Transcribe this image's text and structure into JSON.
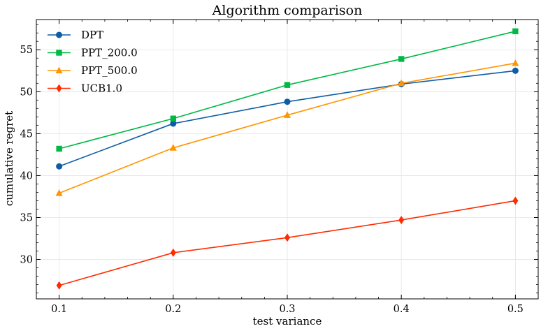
{
  "chart_data": {
    "type": "line",
    "title": "Algorithm comparison",
    "xlabel": "test variance",
    "ylabel": "cumulative regret",
    "x": [
      0.1,
      0.2,
      0.3,
      0.4,
      0.5
    ],
    "x_tick_labels": [
      "0.1",
      "0.2",
      "0.3",
      "0.4",
      "0.5"
    ],
    "xlim": [
      0.08,
      0.52
    ],
    "ylim": [
      25.3,
      58.6
    ],
    "y_ticks": [
      30,
      35,
      40,
      45,
      50,
      55
    ],
    "y_tick_labels": [
      "30",
      "35",
      "40",
      "45",
      "50",
      "55"
    ],
    "grid": true,
    "legend_position": "upper-left",
    "series": [
      {
        "name": "DPT",
        "color": "#0C5DA5",
        "marker": "circle",
        "values": [
          41.1,
          46.2,
          48.8,
          50.9,
          52.5
        ]
      },
      {
        "name": "PPT_200.0",
        "color": "#00B945",
        "marker": "square",
        "values": [
          43.2,
          46.8,
          50.8,
          53.9,
          57.2
        ]
      },
      {
        "name": "PPT_500.0",
        "color": "#FF9500",
        "marker": "triangle",
        "values": [
          37.9,
          43.3,
          47.2,
          51.0,
          53.4
        ]
      },
      {
        "name": "UCB1.0",
        "color": "#FF2C00",
        "marker": "diamond",
        "values": [
          26.9,
          30.8,
          32.6,
          34.7,
          37.0
        ]
      }
    ]
  }
}
